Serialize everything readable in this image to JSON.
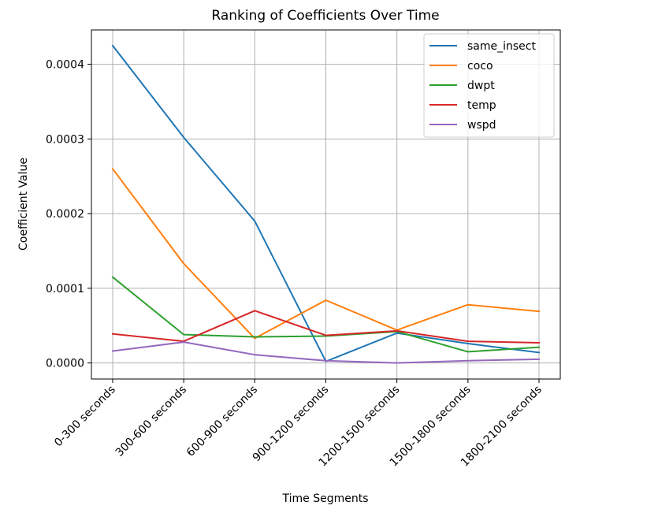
{
  "chart_data": {
    "type": "line",
    "title": "Ranking of Coefficients Over Time",
    "xlabel": "Time Segments",
    "ylabel": "Coefficient Value",
    "categories": [
      "0-300 seconds",
      "300-600 seconds",
      "600-900 seconds",
      "900-1200 seconds",
      "1200-1500 seconds",
      "1500-1800 seconds",
      "1800-2100 seconds"
    ],
    "ylim": [
      -2.15e-05,
      0.000446
    ],
    "yticks": [
      0.0,
      0.0001,
      0.0002,
      0.0003,
      0.0004
    ],
    "ytick_labels": [
      "0.0000",
      "0.0001",
      "0.0002",
      "0.0003",
      "0.0004"
    ],
    "grid": true,
    "legend_position": "upper-right",
    "series": [
      {
        "name": "same_insect",
        "color": "#1f77b4",
        "values": [
          0.000425,
          0.000302,
          0.00019,
          2e-06,
          4e-05,
          2.6e-05,
          1.4e-05
        ]
      },
      {
        "name": "coco",
        "color": "#ff7f0e",
        "values": [
          0.00026,
          0.000133,
          3.3e-05,
          8.4e-05,
          4.4e-05,
          7.8e-05,
          6.9e-05
        ]
      },
      {
        "name": "dwpt",
        "color": "#2ca02c",
        "values": [
          0.000115,
          3.8e-05,
          3.5e-05,
          3.6e-05,
          4.2e-05,
          1.5e-05,
          2.1e-05
        ]
      },
      {
        "name": "temp",
        "color": "#d62728",
        "values": [
          3.9e-05,
          2.9e-05,
          7e-05,
          3.7e-05,
          4.3e-05,
          2.9e-05,
          2.7e-05
        ]
      },
      {
        "name": "wspd",
        "color": "#9467bd",
        "values": [
          1.6e-05,
          2.8e-05,
          1.1e-05,
          3e-06,
          0.0,
          3e-06,
          5e-06
        ]
      }
    ]
  }
}
